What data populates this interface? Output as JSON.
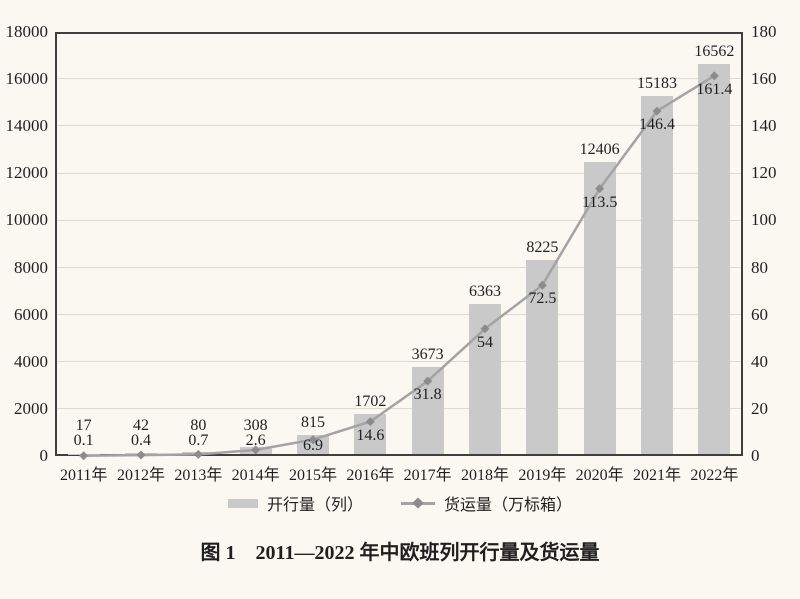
{
  "chart_data": {
    "type": "bar",
    "title": "图 1　2011—2022 年中欧班列开行量及货运量",
    "categories": [
      "2011年",
      "2012年",
      "2013年",
      "2014年",
      "2015年",
      "2016年",
      "2017年",
      "2018年",
      "2019年",
      "2020年",
      "2021年",
      "2022年"
    ],
    "series": [
      {
        "name": "开行量（列）",
        "type": "bar",
        "axis": "left",
        "values": [
          17,
          42,
          80,
          308,
          815,
          1702,
          3673,
          6363,
          8225,
          12406,
          15183,
          16562
        ]
      },
      {
        "name": "货运量（万标箱）",
        "type": "line",
        "axis": "right",
        "values": [
          0.1,
          0.4,
          0.7,
          2.6,
          6.9,
          14.6,
          31.8,
          54,
          72.5,
          113.5,
          146.4,
          161.4
        ]
      }
    ],
    "left_axis": {
      "min": 0,
      "max": 18000,
      "step": 2000
    },
    "right_axis": {
      "min": 0,
      "max": 180,
      "step": 20
    },
    "grid": true,
    "legend_position": "bottom",
    "data_labels": true
  },
  "colors": {
    "background": "#fbf8f2",
    "bar": "#c9c9c9",
    "line": "#a3a3a3",
    "marker": "#8c8c8c",
    "frame": "#3f3f3f",
    "grid": "#dddad4",
    "text": "#1f1f1f"
  }
}
